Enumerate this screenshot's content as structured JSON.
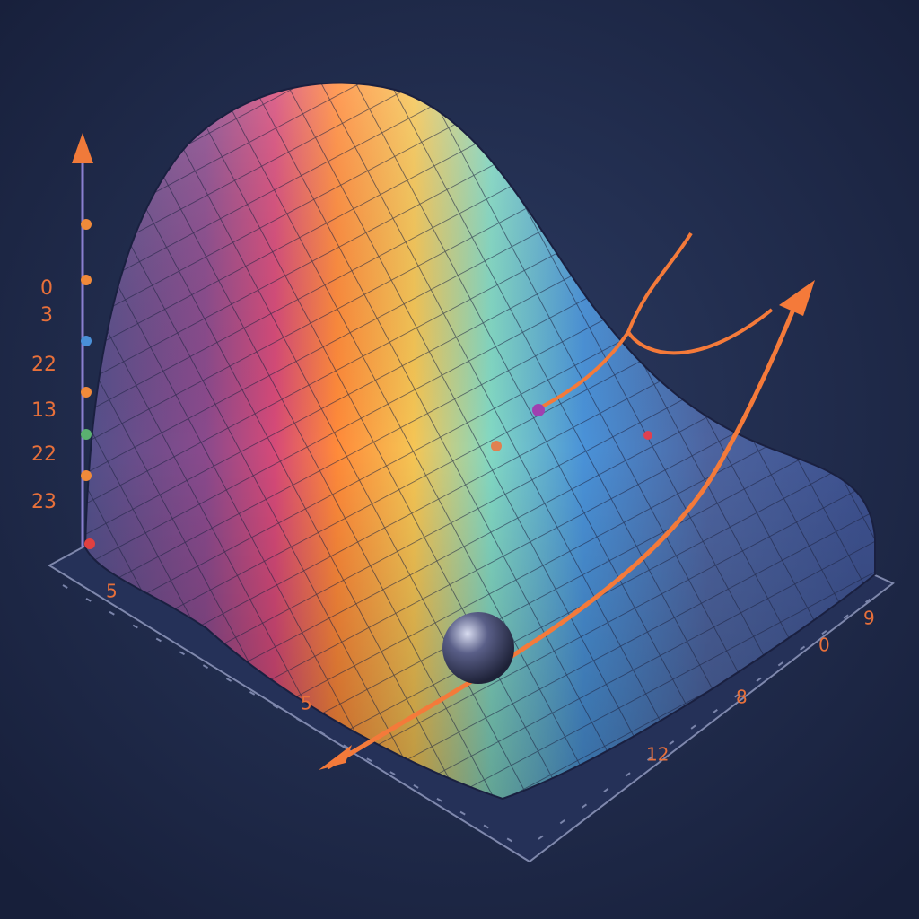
{
  "axis_labels": {
    "vertical": [
      "0",
      "3",
      "22",
      "13",
      "22",
      "23"
    ],
    "front": [
      "5",
      "5",
      "12"
    ],
    "right": [
      "8",
      "0",
      "9"
    ]
  }
}
